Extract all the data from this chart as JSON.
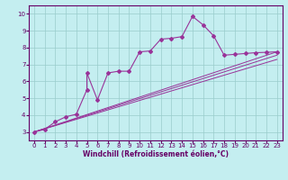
{
  "xlabel": "Windchill (Refroidissement éolien,°C)",
  "bg_color": "#c4eef0",
  "line_color": "#993399",
  "grid_color": "#99cccc",
  "xlim": [
    -0.5,
    23.5
  ],
  "ylim": [
    2.5,
    10.5
  ],
  "yticks": [
    3,
    4,
    5,
    6,
    7,
    8,
    9,
    10
  ],
  "xticks": [
    0,
    1,
    2,
    3,
    4,
    5,
    6,
    7,
    8,
    9,
    10,
    11,
    12,
    13,
    14,
    15,
    16,
    17,
    18,
    19,
    20,
    21,
    22,
    23
  ],
  "main_x": [
    0,
    1,
    2,
    3,
    4,
    5,
    5,
    6,
    7,
    8,
    9,
    10,
    11,
    12,
    13,
    14,
    15,
    16,
    17,
    18,
    19,
    20,
    21,
    22,
    23
  ],
  "main_y": [
    3.0,
    3.15,
    3.6,
    3.9,
    4.05,
    5.5,
    6.5,
    4.9,
    6.5,
    6.6,
    6.6,
    7.75,
    7.8,
    8.5,
    8.55,
    8.65,
    9.85,
    9.35,
    8.7,
    7.55,
    7.6,
    7.65,
    7.7,
    7.72,
    7.75
  ],
  "line1_x": [
    0,
    23
  ],
  "line1_y": [
    3.0,
    7.3
  ],
  "line2_x": [
    0,
    23
  ],
  "line2_y": [
    3.0,
    7.55
  ],
  "line3_x": [
    0,
    23
  ],
  "line3_y": [
    3.0,
    7.75
  ],
  "tick_fontsize": 5.0,
  "xlabel_fontsize": 5.5,
  "tick_color": "#660066",
  "spine_color": "#660066"
}
